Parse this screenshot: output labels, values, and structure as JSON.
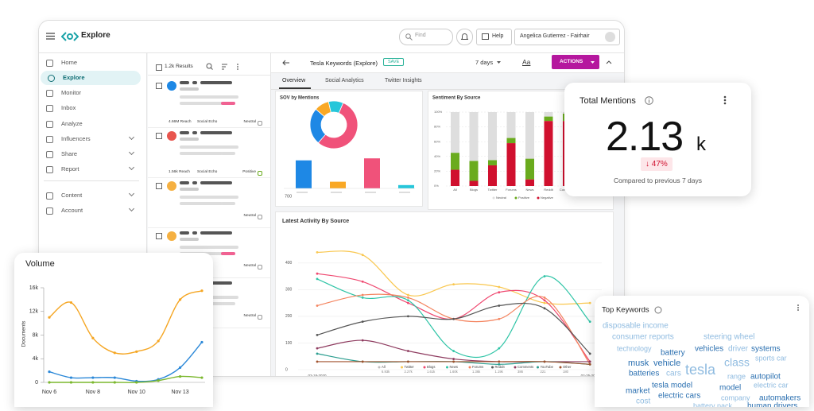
{
  "header": {
    "app": "Explore",
    "search": "Find",
    "help": "Help",
    "user": "Angelica Gutierrez - Fairhair"
  },
  "sidebar": {
    "items": [
      "Home",
      "Explore",
      "Monitor",
      "Inbox",
      "Analyze",
      "Influencers",
      "Share",
      "Report",
      "Content",
      "Account"
    ]
  },
  "results": {
    "count": "1.2k Results",
    "items": [
      {
        "reach": "4.66M Reach",
        "echo": "Social Echo",
        "sentiment": "Neutral"
      },
      {
        "reach": "1.56k Reach",
        "echo": "Social Echo",
        "sentiment": "Positive"
      },
      {
        "sentiment": "Neutral"
      },
      {
        "sentiment": "Neutral"
      },
      {
        "sentiment": "Neutral"
      }
    ]
  },
  "toolbar": {
    "title": "Tesla Keywords (Explore)",
    "save": "SAVE",
    "range": "7 days",
    "font": "Aa",
    "actions": "ACTIONS"
  },
  "tabs": [
    "Overview",
    "Social Analytics",
    "Twitter Insights"
  ],
  "sov": {
    "title": "SOV by Mentions",
    "donut": {
      "values": [
        55,
        25,
        10,
        10
      ],
      "colors": [
        "#f0527a",
        "#1e88e5",
        "#f9a825",
        "#26c6da"
      ]
    },
    "bars": {
      "values": [
        42,
        10,
        45,
        5
      ],
      "colors": [
        "#1e88e5",
        "#f9a825",
        "#f0527a",
        "#26c6da"
      ],
      "ylim": [
        0,
        50
      ]
    },
    "label": "700"
  },
  "sentiment": {
    "title": "Sentiment By Source",
    "ylim": [
      0,
      100
    ],
    "yticks": [
      {
        "value": 0,
        "label": "0%"
      },
      {
        "value": 20,
        "label": "20%"
      },
      {
        "value": 40,
        "label": "40%"
      },
      {
        "value": 60,
        "label": "60%"
      },
      {
        "value": 80,
        "label": "80%"
      },
      {
        "value": 100,
        "label": "100%"
      }
    ],
    "categories": [
      "All",
      "Blogs",
      "Twitter",
      "Forums",
      "News",
      "Reddit",
      "Comments"
    ],
    "series": [
      {
        "name": "Negative",
        "color": "#d0102e",
        "values": [
          22,
          7,
          28,
          58,
          9,
          88,
          88
        ]
      },
      {
        "name": "Positive",
        "color": "#6aab1e",
        "values": [
          23,
          27,
          7,
          7,
          28,
          6,
          10
        ]
      },
      {
        "name": "Neutral",
        "color": "#dedede",
        "values": [
          55,
          66,
          65,
          35,
          63,
          6,
          2
        ]
      }
    ],
    "legend": [
      "Neutral",
      "Positive",
      "Negative"
    ]
  },
  "activity": {
    "title": "Latest Activity By Source",
    "ylim": [
      0,
      450
    ],
    "yticks": [
      0,
      100,
      200,
      300,
      400
    ],
    "categories": [
      "02-18-2020",
      null,
      null,
      null,
      null,
      null,
      "02-25-2020"
    ],
    "grid": true,
    "series": [
      {
        "name": "All",
        "color": "#bdbdbd",
        "total": "6.93k"
      },
      {
        "name": "Twitter",
        "color": "#f9c74f",
        "total": "2.27k",
        "values": [
          440,
          430,
          280,
          320,
          310,
          250,
          250
        ]
      },
      {
        "name": "Blogs",
        "color": "#ef476f",
        "total": "1.61k",
        "values": [
          360,
          330,
          250,
          190,
          290,
          260,
          30
        ]
      },
      {
        "name": "News",
        "color": "#2ec4a6",
        "total": "1.60k",
        "values": [
          340,
          270,
          260,
          70,
          80,
          350,
          180
        ]
      },
      {
        "name": "Forums",
        "color": "#f4845f",
        "total": "1.36k",
        "values": [
          240,
          280,
          270,
          190,
          190,
          270,
          20
        ]
      },
      {
        "name": "Reddit",
        "color": "#555555",
        "total": "1.19k",
        "values": [
          130,
          180,
          200,
          190,
          240,
          230,
          60
        ]
      },
      {
        "name": "Comments",
        "color": "#8e3b5f",
        "total": "386",
        "values": [
          80,
          110,
          70,
          40,
          30,
          30,
          30
        ]
      },
      {
        "name": "YouTube",
        "color": "#2a9d8f",
        "total": "221",
        "values": [
          60,
          30,
          30,
          30,
          20,
          30,
          20
        ]
      },
      {
        "name": "Other",
        "color": "#a0522d",
        "total": "180",
        "values": [
          30,
          30,
          30,
          30,
          30,
          30,
          20
        ]
      }
    ]
  },
  "total": {
    "title": "Total Mentions",
    "value": "2.13",
    "unit": "k",
    "change": "↓ 47%",
    "note": "Compared to previous 7 days"
  },
  "volume": {
    "title": "Volume",
    "ylabel": "Documents",
    "ylim": [
      0,
      16000
    ],
    "yticks": [
      0,
      {
        "value": 4000,
        "label": "4k"
      },
      {
        "value": 8000,
        "label": "8k"
      },
      {
        "value": 12000,
        "label": "12k"
      },
      {
        "value": 16000,
        "label": "16k"
      }
    ],
    "categories": [
      "Nov 6",
      null,
      "Nov 8",
      null,
      "Nov 10",
      null,
      "Nov 13",
      null
    ],
    "series": [
      {
        "color": "#f5a623",
        "values": [
          11000,
          13500,
          7500,
          5000,
          5200,
          7000,
          14000,
          15500
        ]
      },
      {
        "color": "#2b88d8",
        "values": [
          1800,
          800,
          800,
          800,
          200,
          500,
          2500,
          6800
        ]
      },
      {
        "color": "#7cb82f",
        "values": [
          0,
          0,
          0,
          0,
          0,
          300,
          1000,
          800
        ]
      }
    ]
  },
  "keywords": {
    "title": "Top Keywords",
    "words": [
      "disposable income",
      "steering wheel",
      "consumer reports",
      "technology",
      "battery",
      "vehicles",
      "driver",
      "systems",
      "sports car",
      "musk",
      "vehicle",
      "class",
      "batteries",
      "cars",
      "tesla",
      "range",
      "autopilot",
      "electric car",
      "market",
      "tesla model",
      "model",
      "electric cars",
      "company",
      "automakers",
      "cost",
      "battery pack",
      "human drivers"
    ]
  }
}
